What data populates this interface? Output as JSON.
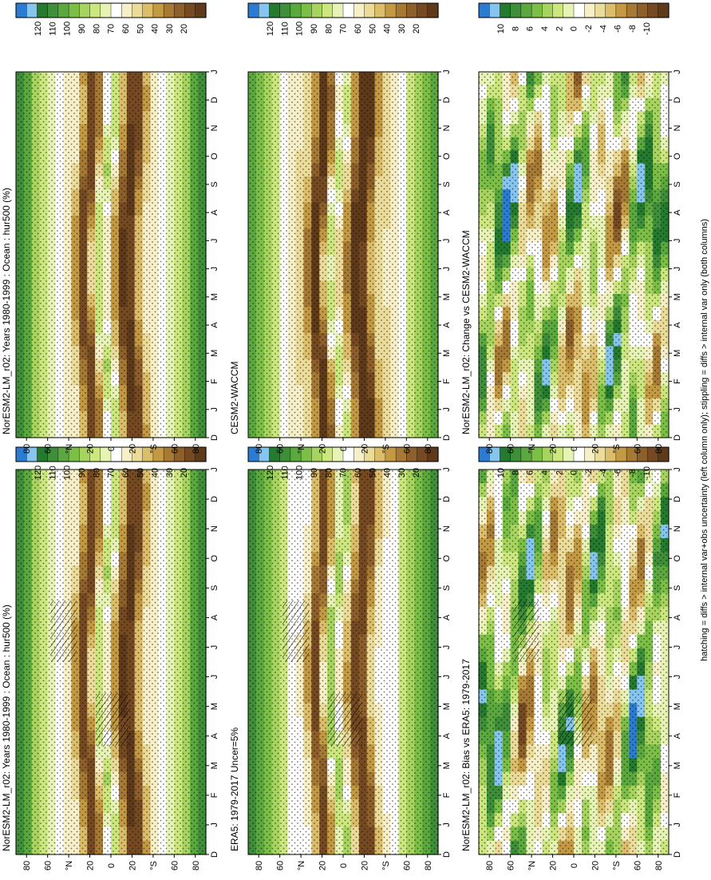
{
  "figure": {
    "footnote": "hatching = diffs > internal var+obs uncertainty (left column only); stippling = diffs > internal var only (both columns)"
  },
  "months": [
    "D",
    "J",
    "F",
    "M",
    "A",
    "M",
    "J",
    "J",
    "A",
    "S",
    "O",
    "N",
    "D",
    "J"
  ],
  "lat_ticks": [
    "80",
    "60",
    "°N",
    "20",
    "0",
    "20",
    "°S",
    "60",
    "80"
  ],
  "chart_data": [
    {
      "type": "heatmap",
      "id": "model-left",
      "title": "NorESM2-LM_r02: Years 1980-1999 : Ocean : hur500 (%)",
      "x_labels": [
        "D",
        "J",
        "F",
        "M",
        "A",
        "M",
        "J",
        "J",
        "A",
        "S",
        "O",
        "N",
        "D",
        "J"
      ],
      "y_labels": [
        "80",
        "60",
        "°N",
        "20",
        "0",
        "20",
        "°S",
        "60",
        "80"
      ],
      "colorbar": {
        "labels": [
          "120",
          "110",
          "100",
          "90",
          "80",
          "70",
          "60",
          "50",
          "40",
          "30",
          "20"
        ],
        "colors": [
          "#2c7bd2",
          "#85c5ef",
          "#247a2f",
          "#3e8e3a",
          "#5aa83e",
          "#7cbf47",
          "#a6d45f",
          "#cde77f",
          "#e6f3b5",
          "#ffffff",
          "#f6efc8",
          "#ecdc9a",
          "#dbbd6a",
          "#c39a43",
          "#a67a34",
          "#8c5f2b",
          "#754a22",
          "#5e3a1b"
        ]
      },
      "hatching": true
    },
    {
      "type": "heatmap",
      "id": "model-right",
      "title": "NorESM2-LM_r02: Years 1980-1999 : Ocean : hur500 (%)",
      "x_labels": [
        "D",
        "J",
        "F",
        "M",
        "A",
        "M",
        "J",
        "J",
        "A",
        "S",
        "O",
        "N",
        "D",
        "J"
      ],
      "y_labels": [
        "80",
        "60",
        "°N",
        "20",
        "0",
        "20",
        "°S",
        "60",
        "80"
      ],
      "colorbar": {
        "labels": [
          "120",
          "110",
          "100",
          "90",
          "80",
          "70",
          "60",
          "50",
          "40",
          "30",
          "20"
        ],
        "colors": [
          "#2c7bd2",
          "#85c5ef",
          "#247a2f",
          "#3e8e3a",
          "#5aa83e",
          "#7cbf47",
          "#a6d45f",
          "#cde77f",
          "#e6f3b5",
          "#ffffff",
          "#f6efc8",
          "#ecdc9a",
          "#dbbd6a",
          "#c39a43",
          "#a67a34",
          "#8c5f2b",
          "#754a22",
          "#5e3a1b"
        ]
      },
      "hatching": false
    },
    {
      "type": "heatmap",
      "id": "obs",
      "title": "ERA5: 1979-2017 Uncer=5%",
      "x_labels": [
        "D",
        "J",
        "F",
        "M",
        "A",
        "M",
        "J",
        "J",
        "A",
        "S",
        "O",
        "N",
        "D",
        "J"
      ],
      "y_labels": [
        "80",
        "60",
        "°N",
        "20",
        "0",
        "20",
        "°S",
        "60",
        "80"
      ],
      "colorbar": {
        "labels": [
          "120",
          "110",
          "100",
          "90",
          "80",
          "70",
          "60",
          "50",
          "40",
          "30",
          "20"
        ],
        "colors": [
          "#2c7bd2",
          "#85c5ef",
          "#247a2f",
          "#3e8e3a",
          "#5aa83e",
          "#7cbf47",
          "#a6d45f",
          "#cde77f",
          "#e6f3b5",
          "#ffffff",
          "#f6efc8",
          "#ecdc9a",
          "#dbbd6a",
          "#c39a43",
          "#a67a34",
          "#8c5f2b",
          "#754a22",
          "#5e3a1b"
        ]
      },
      "hatching": true
    },
    {
      "type": "heatmap",
      "id": "ref-model",
      "title": "CESM2-WACCM",
      "x_labels": [
        "D",
        "J",
        "F",
        "M",
        "A",
        "M",
        "J",
        "J",
        "A",
        "S",
        "O",
        "N",
        "D",
        "J"
      ],
      "y_labels": [
        "80",
        "60",
        "°N",
        "20",
        "0",
        "20",
        "°S",
        "60",
        "80"
      ],
      "colorbar": {
        "labels": [
          "120",
          "110",
          "100",
          "90",
          "80",
          "70",
          "60",
          "50",
          "40",
          "30",
          "20"
        ],
        "colors": [
          "#2c7bd2",
          "#85c5ef",
          "#247a2f",
          "#3e8e3a",
          "#5aa83e",
          "#7cbf47",
          "#a6d45f",
          "#cde77f",
          "#e6f3b5",
          "#ffffff",
          "#f6efc8",
          "#ecdc9a",
          "#dbbd6a",
          "#c39a43",
          "#a67a34",
          "#8c5f2b",
          "#754a22",
          "#5e3a1b"
        ]
      },
      "hatching": false
    },
    {
      "type": "heatmap",
      "id": "bias",
      "title": "NorESM2-LM_r02: Bias vs ERA5: 1979-2017",
      "x_labels": [
        "D",
        "J",
        "F",
        "M",
        "A",
        "M",
        "J",
        "J",
        "A",
        "S",
        "O",
        "N",
        "D",
        "J"
      ],
      "y_labels": [
        "80",
        "60",
        "°N",
        "20",
        "0",
        "20",
        "°S",
        "60",
        "80"
      ],
      "colorbar": {
        "labels": [
          "10",
          "8",
          "6",
          "4",
          "2",
          "0",
          "-2",
          "-4",
          "-6",
          "-8",
          "-10"
        ],
        "colors": [
          "#2c7bd2",
          "#85c5ef",
          "#247a2f",
          "#3e8e3a",
          "#5aa83e",
          "#7cbf47",
          "#a6d45f",
          "#cde77f",
          "#e6f3b5",
          "#ffffff",
          "#f6efc8",
          "#ecdc9a",
          "#dbbd6a",
          "#c39a43",
          "#a67a34",
          "#8c5f2b",
          "#754a22",
          "#5e3a1b"
        ]
      },
      "hatching": true
    },
    {
      "type": "heatmap",
      "id": "change",
      "title": "NorESM2-LM_r02: Change vs CESM2-WACCM",
      "x_labels": [
        "D",
        "J",
        "F",
        "M",
        "A",
        "M",
        "J",
        "J",
        "A",
        "S",
        "O",
        "N",
        "D",
        "J"
      ],
      "y_labels": [
        "80",
        "60",
        "°N",
        "20",
        "0",
        "20",
        "°S",
        "60",
        "80"
      ],
      "colorbar": {
        "labels": [
          "10",
          "8",
          "6",
          "4",
          "2",
          "0",
          "-2",
          "-4",
          "-6",
          "-8",
          "-10"
        ],
        "colors": [
          "#2c7bd2",
          "#85c5ef",
          "#247a2f",
          "#3e8e3a",
          "#5aa83e",
          "#7cbf47",
          "#a6d45f",
          "#cde77f",
          "#e6f3b5",
          "#ffffff",
          "#f6efc8",
          "#ecdc9a",
          "#dbbd6a",
          "#c39a43",
          "#a67a34",
          "#8c5f2b",
          "#754a22",
          "#5e3a1b"
        ]
      },
      "hatching": false
    }
  ]
}
